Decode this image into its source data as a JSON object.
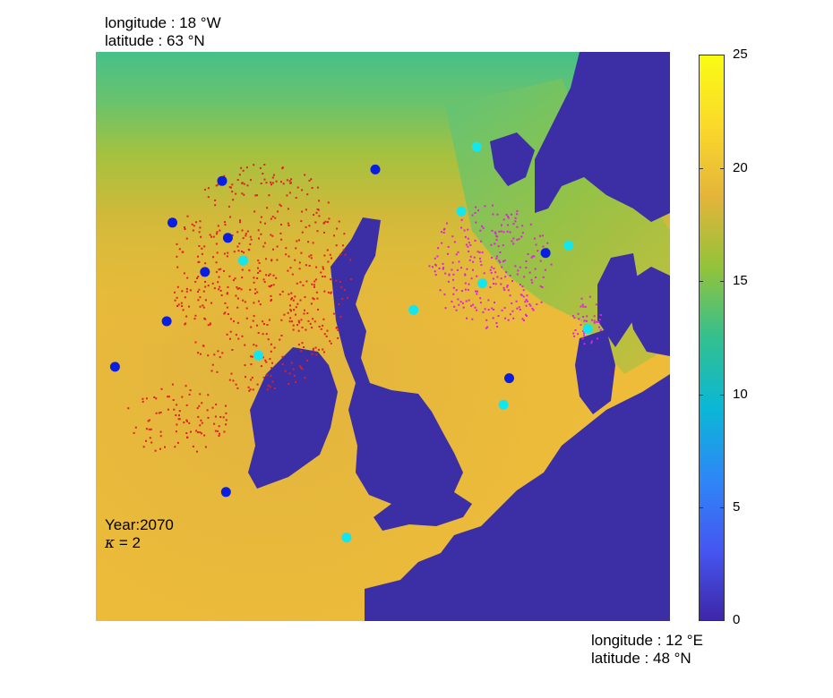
{
  "coords": {
    "top_left": {
      "longitude": "longitude : 18 °W",
      "latitude": "latitude : 63 °N"
    },
    "bottom_right": {
      "longitude": "longitude : 12 °E",
      "latitude": "latitude : 48 °N"
    }
  },
  "annotation": {
    "year": "Year:2070",
    "kappa_symbol": "κ",
    "kappa_value": " = 2"
  },
  "colorbar": {
    "min": 0,
    "max": 25,
    "ticks": [
      {
        "value": 0,
        "label": "0"
      },
      {
        "value": 5,
        "label": "5"
      },
      {
        "value": 10,
        "label": "10"
      },
      {
        "value": 15,
        "label": "15"
      },
      {
        "value": 20,
        "label": "20"
      },
      {
        "value": 25,
        "label": "25"
      }
    ],
    "colormap": [
      "#3e26a8",
      "#4557f1",
      "#2e87f7",
      "#0ab7d6",
      "#33c08f",
      "#93c33a",
      "#e4b43a",
      "#fbd92b",
      "#f9fb15"
    ]
  },
  "map": {
    "water_color": "#3c2ea4",
    "markers": {
      "blue": {
        "color": "#0a1ee0"
      },
      "cyan": {
        "color": "#14e6ee"
      },
      "sites_blue": [
        {
          "lon": -11.4,
          "lat": 59.6
        },
        {
          "lon": -3.4,
          "lat": 59.9
        },
        {
          "lon": -14.0,
          "lat": 58.5
        },
        {
          "lon": -11.1,
          "lat": 58.1
        },
        {
          "lon": -12.3,
          "lat": 57.2
        },
        {
          "lon": -14.3,
          "lat": 55.9
        },
        {
          "lon": -17.0,
          "lat": 54.7
        },
        {
          "lon": -11.2,
          "lat": 51.4
        },
        {
          "lon": 5.5,
          "lat": 57.7
        },
        {
          "lon": 3.6,
          "lat": 54.4
        }
      ],
      "sites_cyan": [
        {
          "lon": 1.9,
          "lat": 60.5
        },
        {
          "lon": 1.1,
          "lat": 58.8
        },
        {
          "lon": 6.7,
          "lat": 57.9
        },
        {
          "lon": -10.3,
          "lat": 57.5
        },
        {
          "lon": 2.2,
          "lat": 56.9
        },
        {
          "lon": -1.4,
          "lat": 56.2
        },
        {
          "lon": 7.7,
          "lat": 55.7
        },
        {
          "lon": -9.5,
          "lat": 55.0
        },
        {
          "lon": 3.3,
          "lat": 53.7
        },
        {
          "lon": -4.9,
          "lat": 50.2
        }
      ]
    }
  }
}
